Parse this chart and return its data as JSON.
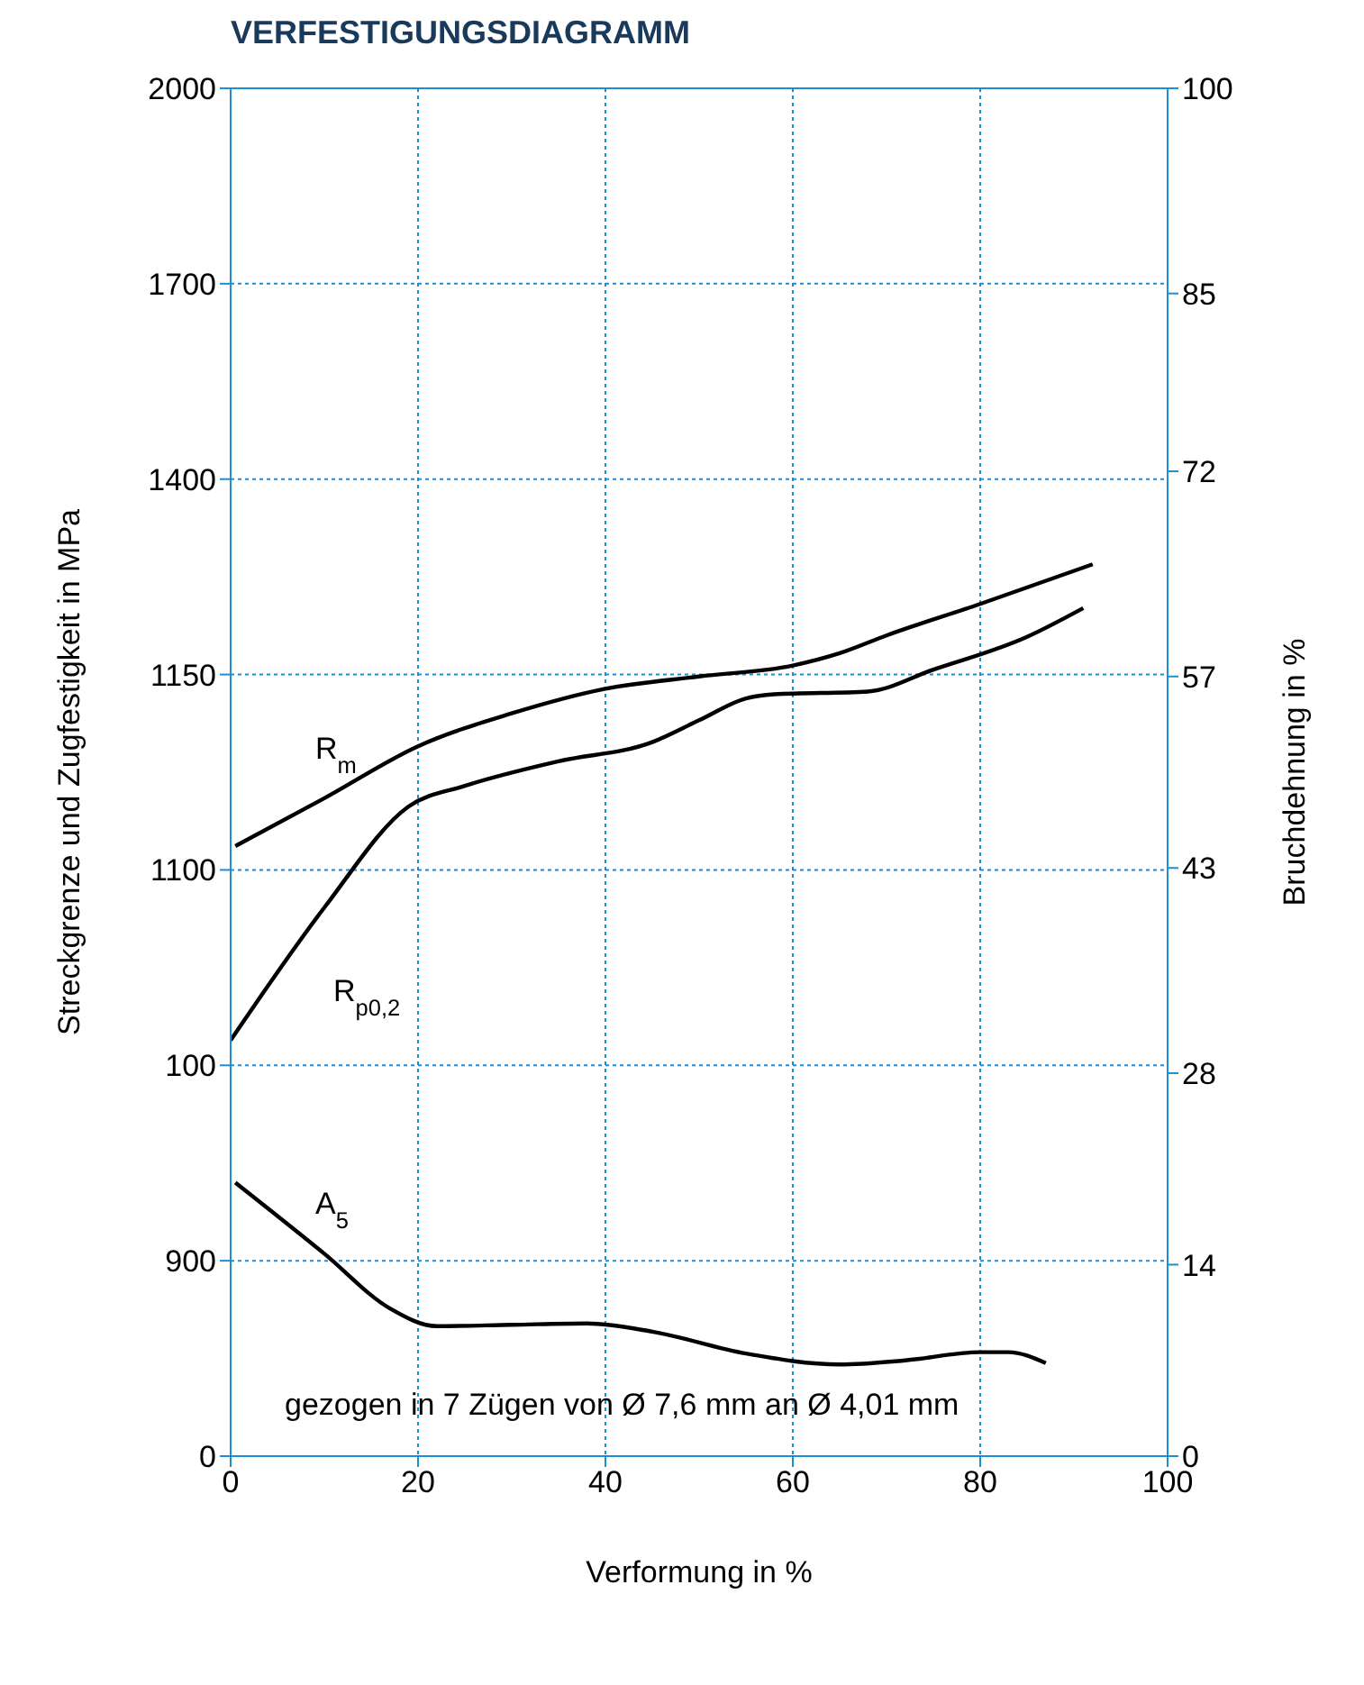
{
  "chart_data": {
    "type": "line",
    "title": "VERFESTIGUNGSDIAGRAMM",
    "xlabel": "Verformung in %",
    "ylabel": "Streckgrenze und Zugfestigkeit in MPa",
    "y2label": "Bruchdehnung  in %",
    "xlim": [
      0,
      100
    ],
    "xticks": [
      0,
      20,
      40,
      60,
      80,
      100
    ],
    "y_categories": [
      "2000",
      "1700",
      "1400",
      "1150",
      "1100",
      "100",
      "900",
      "0"
    ],
    "y2lim": [
      0,
      100
    ],
    "y2ticks": [
      0,
      14,
      28,
      43,
      57,
      72,
      85,
      100
    ],
    "grid": true,
    "legend": false,
    "line_style": "solid",
    "marker": "none",
    "series": [
      {
        "name": "R$_{m}$",
        "color": "#000000",
        "axis": "y2",
        "x": [
          0.5,
          10,
          20,
          30,
          40,
          50,
          60,
          65,
          70,
          80,
          92
        ],
        "values": [
          44.6,
          48.1,
          51.9,
          54.3,
          56.1,
          57,
          57.8,
          58.7,
          60,
          62.3,
          65.2
        ]
      },
      {
        "name": "R$_{p0,2}$",
        "color": "#000000",
        "axis": "y2",
        "x": [
          0,
          10,
          19,
          25,
          35,
          45,
          50,
          55,
          58,
          68,
          75,
          85,
          91
        ],
        "values": [
          30.4,
          40.1,
          47.5,
          49,
          50.8,
          52.2,
          53.8,
          55.4,
          55.7,
          55.9,
          57.5,
          59.9,
          62
        ]
      },
      {
        "name": "A$_{5}$",
        "color": "#000000",
        "axis": "y2",
        "x": [
          0.5,
          10,
          17,
          22,
          30,
          38,
          45,
          55,
          65,
          72,
          80,
          83,
          87
        ],
        "values": [
          20,
          14.8,
          10.8,
          9.5,
          9.6,
          9.7,
          9.1,
          7.5,
          6.7,
          7,
          7.6,
          7.6,
          6.8
        ]
      }
    ],
    "annotations": [
      "gezogen in 7 Zügen von Ø 7,6 mm an Ø 4,01 mm"
    ]
  }
}
